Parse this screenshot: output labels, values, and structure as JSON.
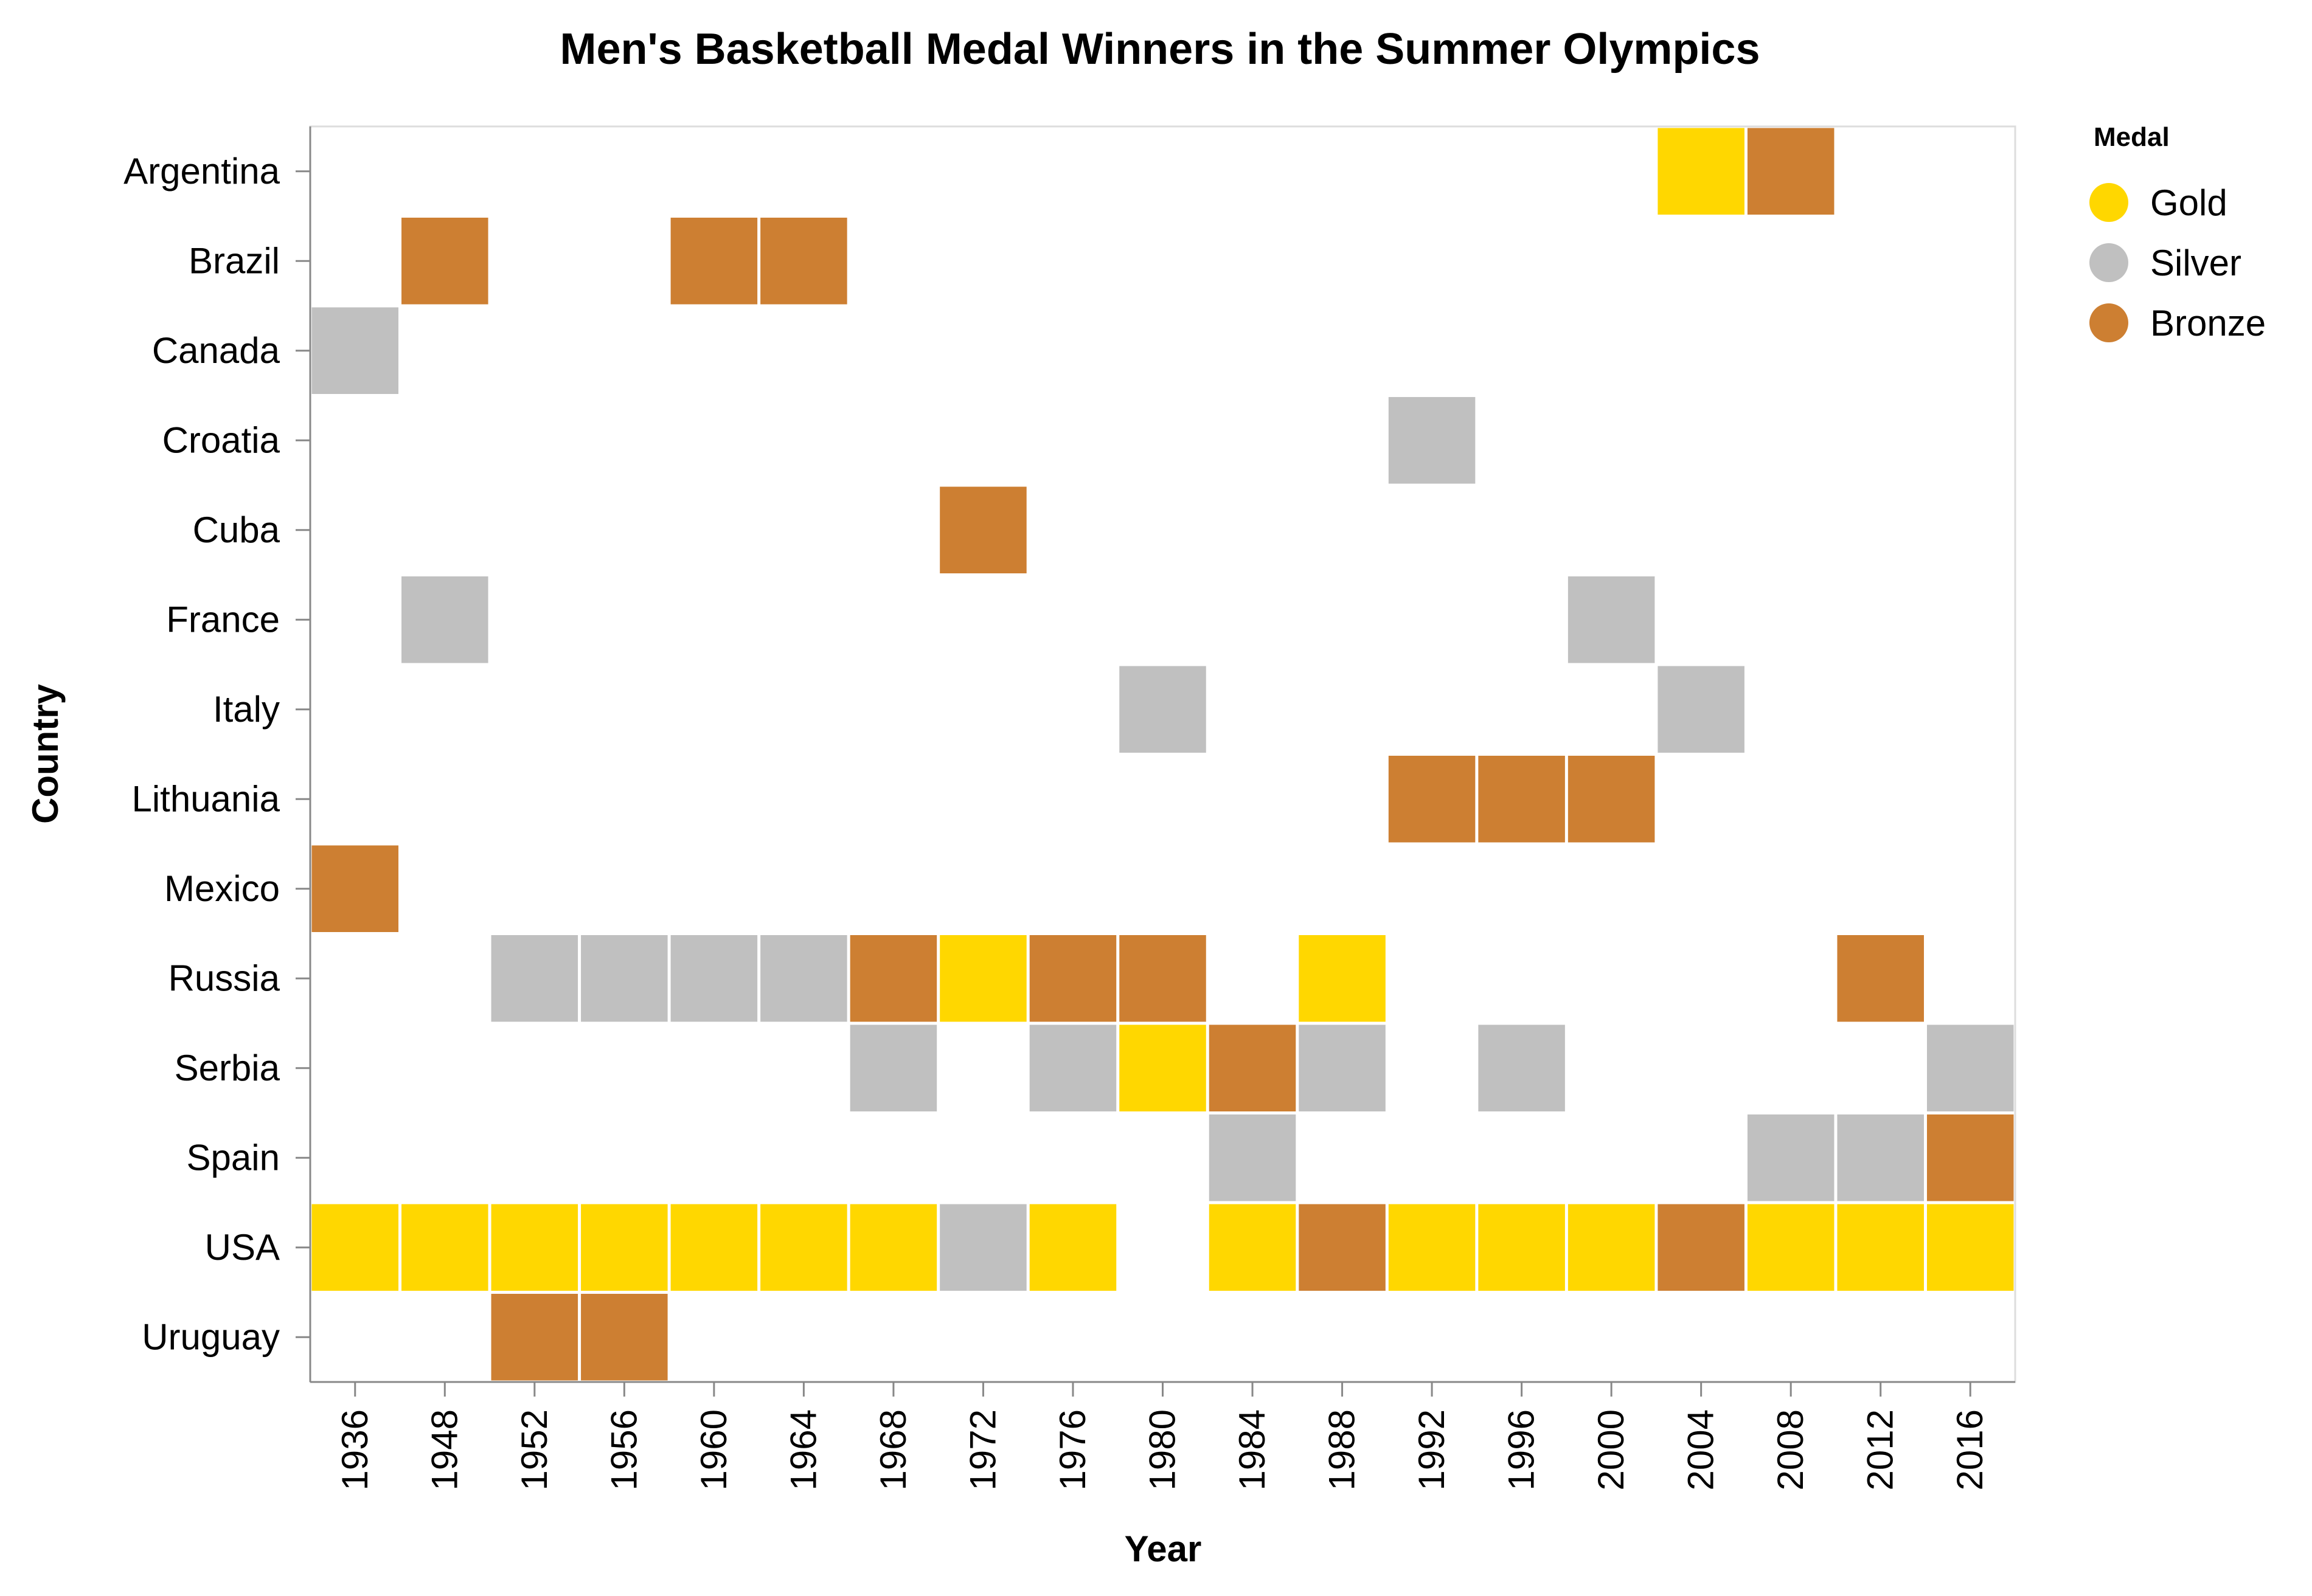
{
  "chart_data": {
    "type": "heatmap",
    "title": "Men's Basketball Medal Winners in the Summer Olympics",
    "xlabel": "Year",
    "ylabel": "Country",
    "x_categories": [
      "1936",
      "1948",
      "1952",
      "1956",
      "1960",
      "1964",
      "1968",
      "1972",
      "1976",
      "1980",
      "1984",
      "1988",
      "1992",
      "1996",
      "2000",
      "2004",
      "2008",
      "2012",
      "2016"
    ],
    "y_categories": [
      "Argentina",
      "Brazil",
      "Canada",
      "Croatia",
      "Cuba",
      "France",
      "Italy",
      "Lithuania",
      "Mexico",
      "Russia",
      "Serbia",
      "Spain",
      "USA",
      "Uruguay"
    ],
    "legend": {
      "title": "Medal",
      "position": "top-right",
      "entries": [
        {
          "label": "Gold",
          "color": "#FFD700"
        },
        {
          "label": "Silver",
          "color": "#C0C0C0"
        },
        {
          "label": "Bronze",
          "color": "#CD7F32"
        }
      ]
    },
    "grid": false,
    "cells": [
      {
        "country": "Argentina",
        "year": "2004",
        "medal": "Gold"
      },
      {
        "country": "Argentina",
        "year": "2008",
        "medal": "Bronze"
      },
      {
        "country": "Brazil",
        "year": "1948",
        "medal": "Bronze"
      },
      {
        "country": "Brazil",
        "year": "1960",
        "medal": "Bronze"
      },
      {
        "country": "Brazil",
        "year": "1964",
        "medal": "Bronze"
      },
      {
        "country": "Canada",
        "year": "1936",
        "medal": "Silver"
      },
      {
        "country": "Croatia",
        "year": "1992",
        "medal": "Silver"
      },
      {
        "country": "Cuba",
        "year": "1972",
        "medal": "Bronze"
      },
      {
        "country": "France",
        "year": "1948",
        "medal": "Silver"
      },
      {
        "country": "France",
        "year": "2000",
        "medal": "Silver"
      },
      {
        "country": "Italy",
        "year": "1980",
        "medal": "Silver"
      },
      {
        "country": "Italy",
        "year": "2004",
        "medal": "Silver"
      },
      {
        "country": "Lithuania",
        "year": "1992",
        "medal": "Bronze"
      },
      {
        "country": "Lithuania",
        "year": "1996",
        "medal": "Bronze"
      },
      {
        "country": "Lithuania",
        "year": "2000",
        "medal": "Bronze"
      },
      {
        "country": "Mexico",
        "year": "1936",
        "medal": "Bronze"
      },
      {
        "country": "Russia",
        "year": "1952",
        "medal": "Silver"
      },
      {
        "country": "Russia",
        "year": "1956",
        "medal": "Silver"
      },
      {
        "country": "Russia",
        "year": "1960",
        "medal": "Silver"
      },
      {
        "country": "Russia",
        "year": "1964",
        "medal": "Silver"
      },
      {
        "country": "Russia",
        "year": "1968",
        "medal": "Bronze"
      },
      {
        "country": "Russia",
        "year": "1972",
        "medal": "Gold"
      },
      {
        "country": "Russia",
        "year": "1976",
        "medal": "Bronze"
      },
      {
        "country": "Russia",
        "year": "1980",
        "medal": "Bronze"
      },
      {
        "country": "Russia",
        "year": "1988",
        "medal": "Gold"
      },
      {
        "country": "Russia",
        "year": "2012",
        "medal": "Bronze"
      },
      {
        "country": "Serbia",
        "year": "1968",
        "medal": "Silver"
      },
      {
        "country": "Serbia",
        "year": "1976",
        "medal": "Silver"
      },
      {
        "country": "Serbia",
        "year": "1980",
        "medal": "Gold"
      },
      {
        "country": "Serbia",
        "year": "1984",
        "medal": "Bronze"
      },
      {
        "country": "Serbia",
        "year": "1988",
        "medal": "Silver"
      },
      {
        "country": "Serbia",
        "year": "1996",
        "medal": "Silver"
      },
      {
        "country": "Serbia",
        "year": "2016",
        "medal": "Silver"
      },
      {
        "country": "Spain",
        "year": "1984",
        "medal": "Silver"
      },
      {
        "country": "Spain",
        "year": "2008",
        "medal": "Silver"
      },
      {
        "country": "Spain",
        "year": "2012",
        "medal": "Silver"
      },
      {
        "country": "Spain",
        "year": "2016",
        "medal": "Bronze"
      },
      {
        "country": "USA",
        "year": "1936",
        "medal": "Gold"
      },
      {
        "country": "USA",
        "year": "1948",
        "medal": "Gold"
      },
      {
        "country": "USA",
        "year": "1952",
        "medal": "Gold"
      },
      {
        "country": "USA",
        "year": "1956",
        "medal": "Gold"
      },
      {
        "country": "USA",
        "year": "1960",
        "medal": "Gold"
      },
      {
        "country": "USA",
        "year": "1964",
        "medal": "Gold"
      },
      {
        "country": "USA",
        "year": "1968",
        "medal": "Gold"
      },
      {
        "country": "USA",
        "year": "1972",
        "medal": "Silver"
      },
      {
        "country": "USA",
        "year": "1976",
        "medal": "Gold"
      },
      {
        "country": "USA",
        "year": "1984",
        "medal": "Gold"
      },
      {
        "country": "USA",
        "year": "1988",
        "medal": "Bronze"
      },
      {
        "country": "USA",
        "year": "1992",
        "medal": "Gold"
      },
      {
        "country": "USA",
        "year": "1996",
        "medal": "Gold"
      },
      {
        "country": "USA",
        "year": "2000",
        "medal": "Gold"
      },
      {
        "country": "USA",
        "year": "2004",
        "medal": "Bronze"
      },
      {
        "country": "USA",
        "year": "2008",
        "medal": "Gold"
      },
      {
        "country": "USA",
        "year": "2012",
        "medal": "Gold"
      },
      {
        "country": "USA",
        "year": "2016",
        "medal": "Gold"
      },
      {
        "country": "Uruguay",
        "year": "1952",
        "medal": "Bronze"
      },
      {
        "country": "Uruguay",
        "year": "1956",
        "medal": "Bronze"
      }
    ]
  }
}
